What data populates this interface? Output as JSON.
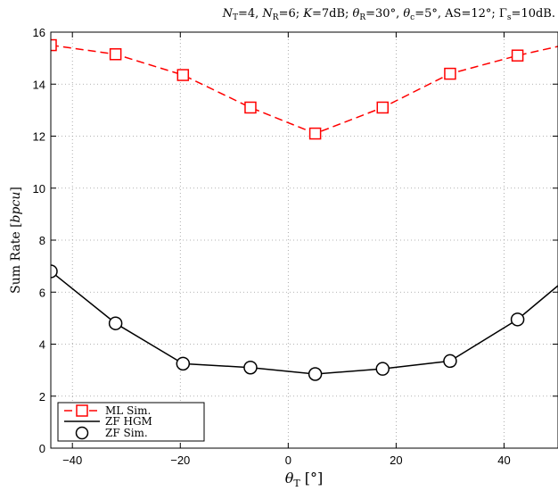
{
  "chart_data": {
    "type": "line",
    "title": "N_T=4, N_R=6; K=7dB; θ_R=30°, θ_c=5°, AS=12°; Γ_s=10dB.",
    "title_parts": {
      "n_t": "N",
      "n_t_sub": "T",
      "n_t_val": "=4, ",
      "n_r": "N",
      "n_r_sub": "R",
      "n_r_val": "=6; ",
      "k": "K",
      "k_val": "=7dB; ",
      "theta_r": "θ",
      "theta_r_sub": "R",
      "theta_r_val": "=30°, ",
      "theta_c": "θ",
      "theta_c_sub": "c",
      "theta_c_val": "=5°, AS=12°; ",
      "gamma_s": "Γ",
      "gamma_s_sub": "s",
      "gamma_s_val": "=10dB."
    },
    "xlabel": "θ_T [°]",
    "xlabel_parts": {
      "main": "θ",
      "sub": "T",
      "unit": " [°]"
    },
    "ylabel": "Sum Rate [bpcu]",
    "ylabel_parts": {
      "main": "Sum Rate [",
      "unit": "bpcu",
      "end": "]"
    },
    "xlim": [
      -44,
      50
    ],
    "ylim": [
      0,
      16
    ],
    "xticks": [
      -40,
      -20,
      0,
      20,
      40
    ],
    "yticks": [
      0,
      2,
      4,
      6,
      8,
      10,
      12,
      14,
      16
    ],
    "xtick_labels": [
      "−40",
      "−20",
      "0",
      "20",
      "40"
    ],
    "ytick_labels": [
      "0",
      "2",
      "4",
      "6",
      "8",
      "10",
      "12",
      "14",
      "16"
    ],
    "grid": true,
    "legend_position": "bottom-left",
    "series": [
      {
        "name": "ML Sim.",
        "color": "#ff0000",
        "line": "dashed",
        "marker": "square",
        "x": [
          -44,
          -32,
          -19.5,
          -7,
          5,
          17.5,
          30,
          42.5,
          50
        ],
        "y": [
          15.5,
          15.15,
          14.35,
          13.1,
          12.1,
          13.1,
          14.4,
          15.1,
          15.45
        ],
        "marker_x": [
          -44,
          -32,
          -19.5,
          -7,
          5,
          17.5,
          30,
          42.5
        ]
      },
      {
        "name": "ZF HGM",
        "color": "#000000",
        "line": "solid",
        "marker": "none",
        "x": [
          -44,
          -32,
          -19.5,
          -7,
          5,
          17.5,
          30,
          42.5,
          50
        ],
        "y": [
          6.8,
          4.8,
          3.25,
          3.1,
          2.85,
          3.05,
          3.35,
          4.95,
          6.25
        ]
      },
      {
        "name": "ZF Sim.",
        "color": "#000000",
        "line": "none",
        "marker": "circle",
        "x": [
          -44,
          -32,
          -19.5,
          -7,
          5,
          17.5,
          30,
          42.5
        ],
        "y": [
          6.8,
          4.8,
          3.25,
          3.1,
          2.85,
          3.05,
          3.35,
          4.95
        ]
      }
    ]
  }
}
